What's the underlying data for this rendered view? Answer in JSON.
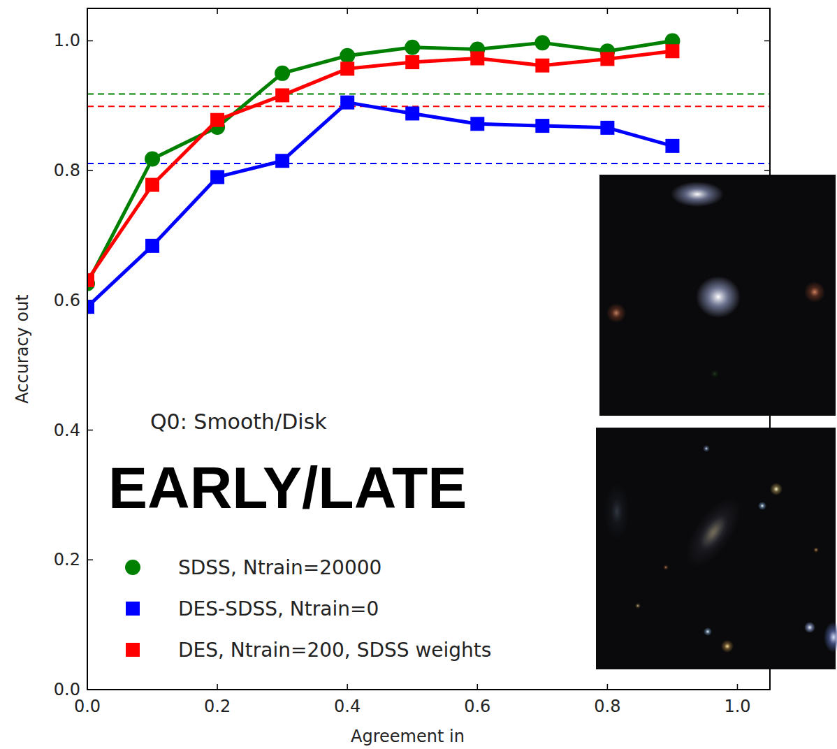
{
  "chart_data": {
    "type": "line",
    "x_label": "Agreement in",
    "y_label": "Accuracy out",
    "annotations": [
      "Q0: Smooth/Disk",
      "EARLY/LATE"
    ],
    "x": [
      0.0,
      0.1,
      0.2,
      0.3,
      0.4,
      0.5,
      0.6,
      0.7,
      0.8,
      0.9
    ],
    "series": [
      {
        "name": "SDSS, Ntrain=20000",
        "color": "#008000",
        "marker": "circle",
        "baseline": 0.918,
        "values": [
          0.626,
          0.818,
          0.867,
          0.95,
          0.977,
          0.99,
          0.987,
          0.997,
          0.984,
          1.0
        ]
      },
      {
        "name": "DES-SDSS, Ntrain=0",
        "color": "#0000ff",
        "marker": "square",
        "baseline": 0.811,
        "values": [
          0.59,
          0.684,
          0.79,
          0.815,
          0.905,
          0.888,
          0.872,
          0.869,
          0.866,
          0.838
        ]
      },
      {
        "name": "DES, Ntrain=200, SDSS weights",
        "color": "#ff0000",
        "marker": "square",
        "baseline": 0.899,
        "values": [
          0.631,
          0.778,
          0.878,
          0.916,
          0.957,
          0.967,
          0.973,
          0.962,
          0.972,
          0.984
        ]
      }
    ],
    "xlim": [
      0,
      1.05
    ],
    "ylim": [
      0,
      1.05
    ],
    "xticks": [
      {
        "value": 0,
        "label": "0.0"
      },
      0.2,
      0.4,
      0.6,
      0.8,
      {
        "value": 1,
        "label": "1.0"
      }
    ],
    "yticks": [
      {
        "value": 0,
        "label": "0.0"
      },
      0.2,
      0.4,
      0.6,
      0.8,
      {
        "value": 1,
        "label": "1.0"
      }
    ],
    "grid": false,
    "legend": "lower left"
  }
}
